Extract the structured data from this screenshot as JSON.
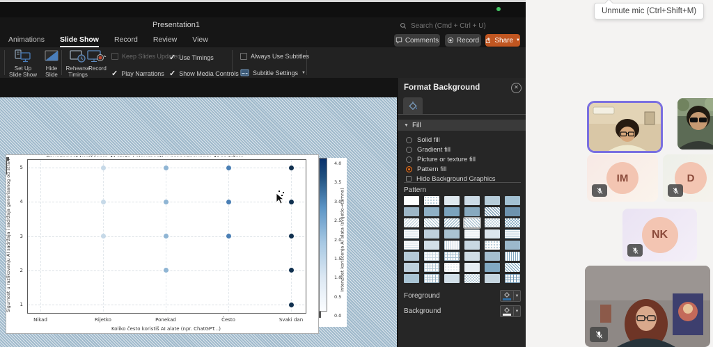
{
  "window": {
    "title": "Presentation1",
    "search_placeholder": "Search (Cmd + Ctrl + U)",
    "tabs": [
      "Animations",
      "Slide Show",
      "Record",
      "Review",
      "View"
    ],
    "active_tab": "Slide Show",
    "buttons": {
      "comments": "Comments",
      "record": "Record",
      "share": "Share"
    }
  },
  "ribbon": {
    "set_up": [
      "Set Up",
      "Slide Show"
    ],
    "hide": [
      "Hide",
      "Slide"
    ],
    "rehearse": [
      "Rehearse",
      "Timings"
    ],
    "record_label": "Record",
    "subtitle_settings": "Subtitle Settings",
    "checkboxes": [
      {
        "label": "Keep Slides Updated",
        "checked": false,
        "disabled": true
      },
      {
        "label": "Play Narrations",
        "checked": true,
        "disabled": false
      },
      {
        "label": "Use Timings",
        "checked": true,
        "disabled": false
      },
      {
        "label": "Show Media Controls",
        "checked": true,
        "disabled": false
      },
      {
        "label": "Always Use Subtitles",
        "checked": false,
        "disabled": false
      }
    ]
  },
  "panel": {
    "title": "Format Background",
    "section": "Fill",
    "fill_options": [
      {
        "label": "Solid fill",
        "control": "radio",
        "selected": false
      },
      {
        "label": "Gradient fill",
        "control": "radio",
        "selected": false
      },
      {
        "label": "Picture or texture fill",
        "control": "radio",
        "selected": false
      },
      {
        "label": "Pattern fill",
        "control": "radio",
        "selected": true
      },
      {
        "label": "Hide Background Graphics",
        "control": "checkbox",
        "selected": false
      }
    ],
    "pattern_label": "Pattern",
    "selected_pattern_index": 15,
    "patterns": [
      {
        "t": "solid",
        "c": "#fdfefe"
      },
      {
        "t": "dots",
        "c": "#b9cdd9"
      },
      {
        "t": "solid",
        "c": "#dfe9ef"
      },
      {
        "t": "solid",
        "c": "#ccdbe6"
      },
      {
        "t": "solid",
        "c": "#b7cdda"
      },
      {
        "t": "solid",
        "c": "#a2c0d2"
      },
      {
        "t": "solid",
        "c": "#9db6c6"
      },
      {
        "t": "solid",
        "c": "#8fb0c5"
      },
      {
        "t": "solid",
        "c": "#7ba3bd"
      },
      {
        "t": "solid",
        "c": "#87a9bf"
      },
      {
        "t": "hatch",
        "c": "#5f88a5"
      },
      {
        "t": "solid",
        "c": "#6e93ae"
      },
      {
        "t": "hatch2",
        "c": "#b9cdd9"
      },
      {
        "t": "hatch",
        "c": "#a9c2d1"
      },
      {
        "t": "hatch2",
        "c": "#8fb0c4"
      },
      {
        "t": "hatch",
        "c": "#9db8ca"
      },
      {
        "t": "check",
        "c": "#c4d4de"
      },
      {
        "t": "check",
        "c": "#8fb2c8"
      },
      {
        "t": "hlines",
        "c": "#b9cdd9"
      },
      {
        "t": "solid",
        "c": "#bed0dc"
      },
      {
        "t": "solid",
        "c": "#aac3d2"
      },
      {
        "t": "hlines",
        "c": "#cfdde6"
      },
      {
        "t": "solid",
        "c": "#dce6ed"
      },
      {
        "t": "hlines",
        "c": "#8fb2c6"
      },
      {
        "t": "hlines",
        "c": "#c6d6e0"
      },
      {
        "t": "solid",
        "c": "#d2dfe8"
      },
      {
        "t": "vlines",
        "c": "#c2d3de"
      },
      {
        "t": "solid",
        "c": "#c9d8e2"
      },
      {
        "t": "dots",
        "c": "#b9cdd9"
      },
      {
        "t": "solid",
        "c": "#9cb9cc"
      },
      {
        "t": "solid",
        "c": "#b5cad8"
      },
      {
        "t": "grid",
        "c": "#cbd9e3"
      },
      {
        "t": "grid",
        "c": "#a9c2d2"
      },
      {
        "t": "solid",
        "c": "#d0dde6"
      },
      {
        "t": "solid",
        "c": "#a5bfd0"
      },
      {
        "t": "vlines",
        "c": "#7ca4bd"
      },
      {
        "t": "solid",
        "c": "#bed0dc"
      },
      {
        "t": "grid",
        "c": "#b3c8d5"
      },
      {
        "t": "dots",
        "c": "#e4ecf1"
      },
      {
        "t": "solid",
        "c": "#e6edf2"
      },
      {
        "t": "solid",
        "c": "#82a9c2"
      },
      {
        "t": "hatch",
        "c": "#74a0ba"
      },
      {
        "t": "solid",
        "c": "#a9c4d4"
      },
      {
        "t": "grid",
        "c": "#9db8c9"
      },
      {
        "t": "solid",
        "c": "#d2dfe8"
      },
      {
        "t": "check",
        "c": "#b9cdd9"
      },
      {
        "t": "solid",
        "c": "#c6d6e0"
      },
      {
        "t": "grid",
        "c": "#6f96b2"
      }
    ],
    "foreground_label": "Foreground",
    "background_label": "Background"
  },
  "chart_data": {
    "type": "scatter",
    "title": "Povezanost korišćenja AI alata i sigurnosti u prepoznavanju AI sadržaja",
    "xlabel": "Koliko često koristiš AI alate (npr. ChatGPT...)",
    "ylabel": "Sigurnost u razlikovanju AI sadržaja i sadržaja generisanog od stran",
    "x_categories": [
      "Nikad",
      "Rijetko",
      "Ponekad",
      "Često",
      "Svaki dan"
    ],
    "y_ticks": [
      1,
      2,
      3,
      4,
      5
    ],
    "ylim": [
      1,
      5
    ],
    "grid": true,
    "points": [
      {
        "x": "Rijetko",
        "y": 5,
        "intensity": 1
      },
      {
        "x": "Rijetko",
        "y": 4,
        "intensity": 1
      },
      {
        "x": "Rijetko",
        "y": 3,
        "intensity": 1
      },
      {
        "x": "Ponekad",
        "y": 5,
        "intensity": 2
      },
      {
        "x": "Ponekad",
        "y": 4,
        "intensity": 2
      },
      {
        "x": "Ponekad",
        "y": 3,
        "intensity": 2
      },
      {
        "x": "Ponekad",
        "y": 2,
        "intensity": 2
      },
      {
        "x": "Često",
        "y": 5,
        "intensity": 3
      },
      {
        "x": "Često",
        "y": 4,
        "intensity": 3
      },
      {
        "x": "Često",
        "y": 3,
        "intensity": 3
      },
      {
        "x": "Svaki dan",
        "y": 5,
        "intensity": 4
      },
      {
        "x": "Svaki dan",
        "y": 4,
        "intensity": 4
      },
      {
        "x": "Svaki dan",
        "y": 3,
        "intensity": 4
      },
      {
        "x": "Svaki dan",
        "y": 2,
        "intensity": 4
      },
      {
        "x": "Svaki dan",
        "y": 1,
        "intensity": 4
      }
    ],
    "intensity_colors": {
      "1": "#c6d9e8",
      "2": "#8fb5d4",
      "3": "#4a7fb5",
      "4": "#10304f"
    },
    "colorbar": {
      "label": "Intenzitet korišćenja AI alata (svijetlo→tamno)",
      "min": 0.0,
      "max": 4.0,
      "tick_step": 0.5
    }
  },
  "meeting": {
    "tooltip": "Unmute mic (Ctrl+Shift+M)",
    "initials": [
      "IM",
      "D",
      "NK"
    ],
    "all_muted": true
  },
  "colors": {
    "accent_orange": "#c05621",
    "slide_pattern_fill": "#9fb9cb",
    "active_tile_border": "#7a6fe0",
    "avatar_bg": "#f3c5b2",
    "avatar_text": "#8a4a3a",
    "colorbar_top": "#08306b"
  }
}
